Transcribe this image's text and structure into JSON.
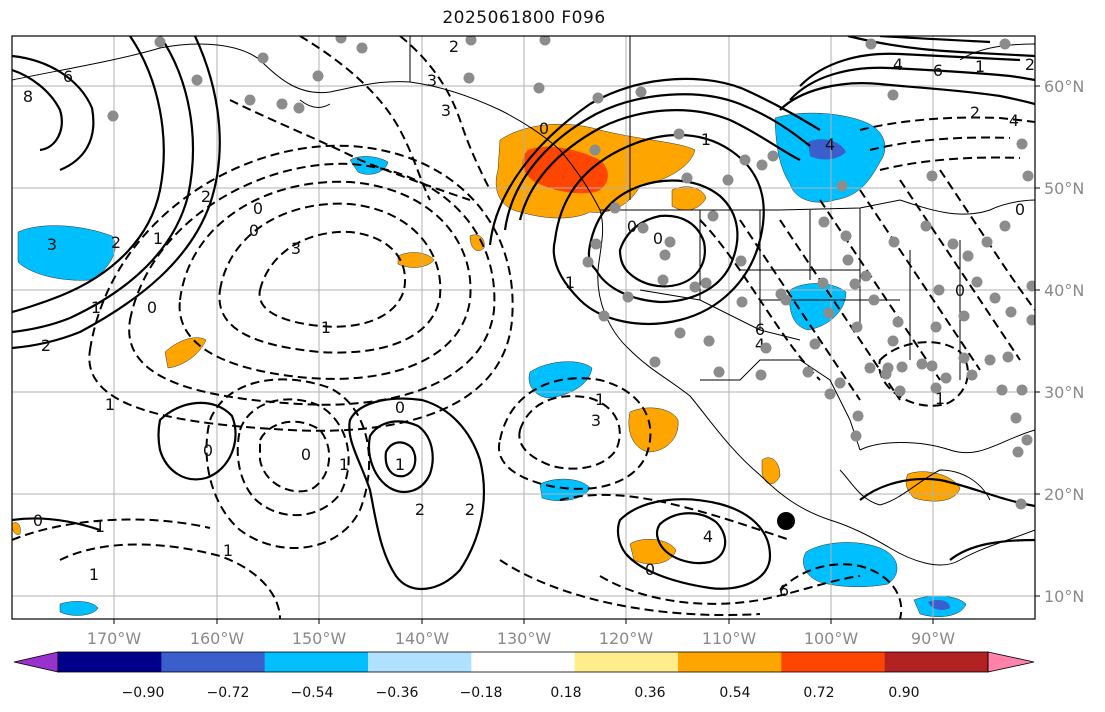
{
  "title": "2025061800 F096",
  "map": {
    "lon_labels": [
      "170°W",
      "160°W",
      "150°W",
      "140°W",
      "130°W",
      "120°W",
      "110°W",
      "100°W",
      "90°W"
    ],
    "lat_labels": [
      "60°N",
      "50°N",
      "40°N",
      "30°N",
      "20°N",
      "10°N"
    ],
    "contour_labels": [
      "6",
      "8",
      "2",
      "3",
      "3",
      "4",
      "6",
      "1",
      "2",
      "2",
      "4",
      "4",
      "3",
      "2",
      "1",
      "2",
      "0",
      "0",
      "3",
      "1",
      "0",
      "1",
      "2",
      "1",
      "0",
      "2",
      "1",
      "2",
      "1",
      "0",
      "0",
      "1",
      "0",
      "1",
      "1",
      "0",
      "4",
      "6",
      "3",
      "1",
      "0",
      "0",
      "1",
      "0",
      "1",
      "4",
      "6",
      "1",
      "0",
      "0"
    ]
  },
  "colorbar": {
    "colors": [
      "#9932CC",
      "#00008B",
      "#3A5FCD",
      "#00BFFF",
      "#B0E2FF",
      "#FFFFFF",
      "#FFEC8B",
      "#FFA500",
      "#FF4500",
      "#B22222",
      "#FF82AB"
    ],
    "tick_labels": [
      "−0.90",
      "−0.72",
      "−0.54",
      "−0.36",
      "−0.18",
      "0.18",
      "0.36",
      "0.54",
      "0.72",
      "0.90"
    ]
  },
  "colors": {
    "positive_contour": "#000000",
    "negative_contour": "#000000",
    "station_dot": "#8c8c8c",
    "grid": "#b0b0b0",
    "coastline": "#000000"
  }
}
